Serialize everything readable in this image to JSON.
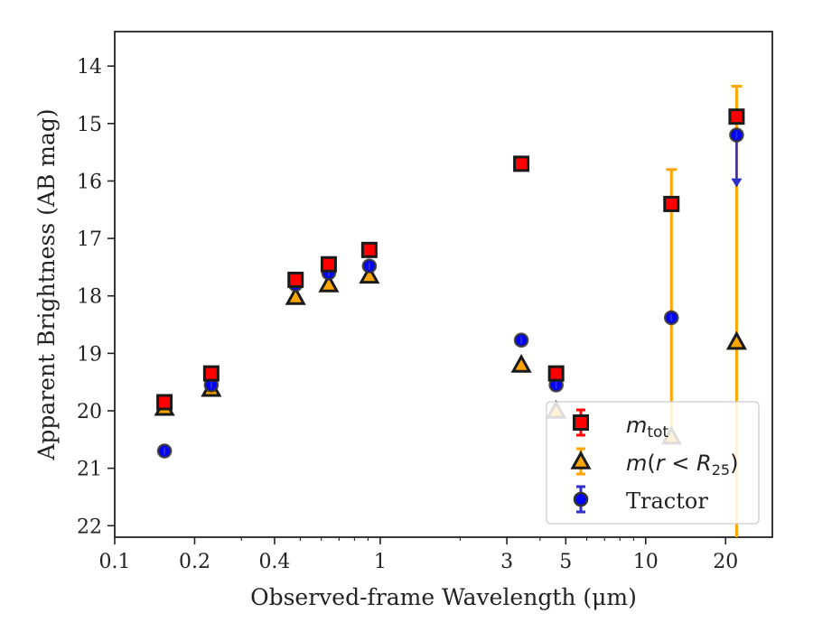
{
  "chart_data": {
    "type": "scatter",
    "title": "",
    "xlabel": "Observed-frame Wavelength (μm)",
    "ylabel": "Apparent Brightness (AB mag)",
    "x_scale": "log",
    "xlim": [
      0.1,
      30
    ],
    "ylim": [
      22.2,
      13.4
    ],
    "y_inverted": true,
    "x_ticks": [
      0.1,
      0.2,
      0.4,
      1,
      3,
      5,
      10,
      20
    ],
    "x_tick_labels": [
      "0.1",
      "0.2",
      "0.4",
      "1",
      "3",
      "5",
      "10",
      "20"
    ],
    "y_ticks": [
      14,
      15,
      16,
      17,
      18,
      19,
      20,
      21,
      22
    ],
    "y_tick_labels": [
      "14",
      "15",
      "16",
      "17",
      "18",
      "19",
      "20",
      "21",
      "22"
    ],
    "grid": false,
    "legend_position": "bottom-right",
    "legend": [
      "m_tot",
      "m(r < R_25)",
      "Tractor"
    ],
    "series": [
      {
        "name": "m_tot",
        "marker": "square",
        "color": "#ff0000",
        "edge_color": "#1a1a1a",
        "error_color": "#ff0000",
        "points": [
          {
            "x": 0.154,
            "y": 19.85
          },
          {
            "x": 0.231,
            "y": 19.35
          },
          {
            "x": 0.48,
            "y": 17.72
          },
          {
            "x": 0.64,
            "y": 17.45
          },
          {
            "x": 0.91,
            "y": 17.2
          },
          {
            "x": 3.4,
            "y": 15.7
          },
          {
            "x": 4.6,
            "y": 19.35
          },
          {
            "x": 12.5,
            "y": 16.4,
            "yerr_low": 15.8,
            "yerr_high": 20.5
          },
          {
            "x": 22.0,
            "y": 14.88,
            "yerr_low": 14.35,
            "yerr_high": 22.2
          }
        ]
      },
      {
        "name": "m(r < R_25)",
        "marker": "triangle",
        "color": "#ffa500",
        "edge_color": "#1a1a1a",
        "error_color": "#ffa500",
        "points": [
          {
            "x": 0.154,
            "y": 19.95
          },
          {
            "x": 0.231,
            "y": 19.62
          },
          {
            "x": 0.48,
            "y": 18.02
          },
          {
            "x": 0.64,
            "y": 17.8
          },
          {
            "x": 0.91,
            "y": 17.65
          },
          {
            "x": 3.4,
            "y": 19.2
          },
          {
            "x": 4.6,
            "y": 20.0
          },
          {
            "x": 12.5,
            "y": 20.45
          },
          {
            "x": 22.0,
            "y": 18.8
          }
        ]
      },
      {
        "name": "Tractor",
        "marker": "circle",
        "color": "#0000ff",
        "edge_color": "#333333",
        "error_color": "#2e2ec8",
        "points": [
          {
            "x": 0.154,
            "y": 20.7
          },
          {
            "x": 0.231,
            "y": 19.55
          },
          {
            "x": 0.48,
            "y": 17.8
          },
          {
            "x": 0.64,
            "y": 17.6
          },
          {
            "x": 0.91,
            "y": 17.48
          },
          {
            "x": 3.4,
            "y": 18.77
          },
          {
            "x": 4.6,
            "y": 19.55
          },
          {
            "x": 12.5,
            "y": 18.38
          },
          {
            "x": 22.0,
            "y": 15.2,
            "upper_limit_to": 16.05
          }
        ]
      }
    ]
  }
}
